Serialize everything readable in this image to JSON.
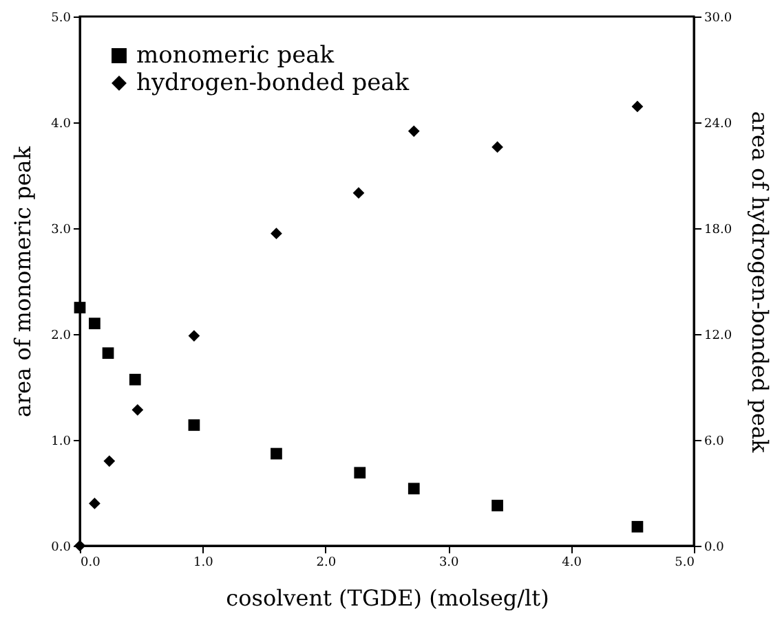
{
  "chart_data": {
    "type": "scatter",
    "xlabel": "cosolvent (TGDE) (molseg/lt)",
    "ylabel": "area of monomeric peak",
    "y2label": "area of hydrogen-bonded peak",
    "xlim": [
      0,
      5
    ],
    "ylim": [
      0,
      5
    ],
    "y2lim": [
      0,
      30
    ],
    "xticks": [
      {
        "value": 0,
        "label": "0.0"
      },
      {
        "value": 1,
        "label": "1.0"
      },
      {
        "value": 2,
        "label": "2.0"
      },
      {
        "value": 3,
        "label": "3.0"
      },
      {
        "value": 4,
        "label": "4.0"
      },
      {
        "value": 5,
        "label": "5.0"
      }
    ],
    "yticks": [
      {
        "value": 0,
        "label": "0.0"
      },
      {
        "value": 1,
        "label": "1.0"
      },
      {
        "value": 2,
        "label": "2.0"
      },
      {
        "value": 3,
        "label": "3.0"
      },
      {
        "value": 4,
        "label": "4.0"
      },
      {
        "value": 5,
        "label": "5.0"
      }
    ],
    "y2ticks": [
      {
        "value": 0,
        "label": "0.0"
      },
      {
        "value": 6,
        "label": "6.0"
      },
      {
        "value": 12,
        "label": "12.0"
      },
      {
        "value": 18,
        "label": "18.0"
      },
      {
        "value": 24,
        "label": "24.0"
      },
      {
        "value": 30,
        "label": "30.0"
      }
    ],
    "grid": false,
    "legend": "top left",
    "series": [
      {
        "name": "monomeric peak",
        "color": "#000000",
        "marker": "square",
        "x": [
          0,
          0.12,
          0.23,
          0.45,
          0.93,
          1.6,
          2.28,
          2.72,
          3.4,
          4.54
        ],
        "values": [
          2.25,
          2.1,
          1.82,
          1.57,
          1.14,
          0.87,
          0.69,
          0.54,
          0.38,
          0.18
        ]
      },
      {
        "name": "hydrogen-bonded peak",
        "color": "#000000",
        "marker": "diamond",
        "axis": "y2",
        "x": [
          0,
          0.12,
          0.24,
          0.47,
          0.93,
          1.6,
          2.27,
          2.72,
          3.4,
          4.54
        ],
        "values": [
          0,
          2.4,
          4.8,
          7.7,
          11.9,
          17.7,
          20.0,
          23.5,
          22.6,
          24.9
        ]
      }
    ]
  }
}
